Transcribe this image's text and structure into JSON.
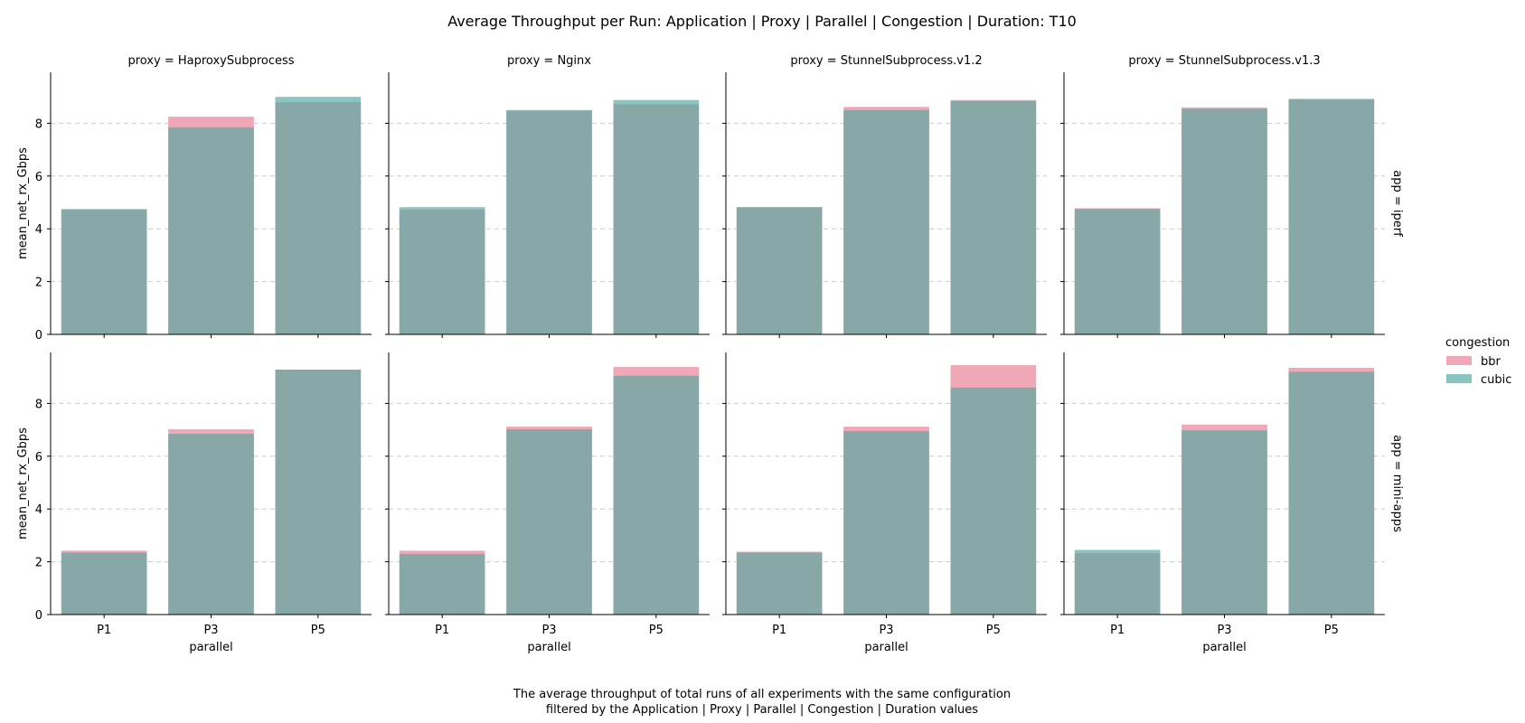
{
  "title": "Average Throughput per Run: Application | Proxy | Parallel | Congestion | Duration: T10",
  "caption_lines": [
    "The average throughput of total runs of all experiments with the same configuration",
    "filtered by the Application | Proxy | Parallel | Congestion | Duration values"
  ],
  "legend": {
    "title": "congestion",
    "entries": [
      {
        "label": "bbr",
        "color": "#f0a8b6"
      },
      {
        "label": "cubic",
        "color": "#88c4c0"
      }
    ]
  },
  "colors": {
    "bbr": "#f0a8b6",
    "cubic": "#88c4c0",
    "overlap": "#88a8a8",
    "grid": "#cccccc"
  },
  "chart_data": {
    "type": "bar",
    "subtype": "faceted overlaid bars",
    "categories": [
      "P1",
      "P3",
      "P5"
    ],
    "xlabel": "parallel",
    "ylabel": "mean_net_rx_Gbps",
    "ylim": [
      0,
      10
    ],
    "yticks": [
      0,
      2,
      4,
      6,
      8
    ],
    "grid": "horizontal dashed",
    "legend_position": "right",
    "col_titles": [
      "proxy = HaproxySubprocess",
      "proxy = Nginx",
      "proxy = StunnelSubprocess.v1.2",
      "proxy = StunnelSubprocess.v1.3"
    ],
    "row_titles": [
      "app = iperf",
      "app = mini-apps"
    ],
    "panels": [
      [
        {
          "bbr": [
            4.72,
            8.25,
            8.8
          ],
          "cubic": [
            4.75,
            7.85,
            9.0
          ]
        },
        {
          "bbr": [
            4.72,
            8.48,
            8.72
          ],
          "cubic": [
            4.82,
            8.5,
            8.88
          ]
        },
        {
          "bbr": [
            4.82,
            8.62,
            8.88
          ],
          "cubic": [
            4.82,
            8.5,
            8.85
          ]
        },
        {
          "bbr": [
            4.78,
            8.6,
            8.92
          ],
          "cubic": [
            4.75,
            8.55,
            8.92
          ]
        }
      ],
      [
        {
          "bbr": [
            2.42,
            7.02,
            9.28
          ],
          "cubic": [
            2.35,
            6.85,
            9.28
          ]
        },
        {
          "bbr": [
            2.42,
            7.12,
            9.38
          ],
          "cubic": [
            2.3,
            7.02,
            9.05
          ]
        },
        {
          "bbr": [
            2.38,
            7.12,
            9.45
          ],
          "cubic": [
            2.35,
            6.95,
            8.6
          ]
        },
        {
          "bbr": [
            2.32,
            7.2,
            9.35
          ],
          "cubic": [
            2.45,
            6.98,
            9.2
          ]
        }
      ]
    ]
  }
}
